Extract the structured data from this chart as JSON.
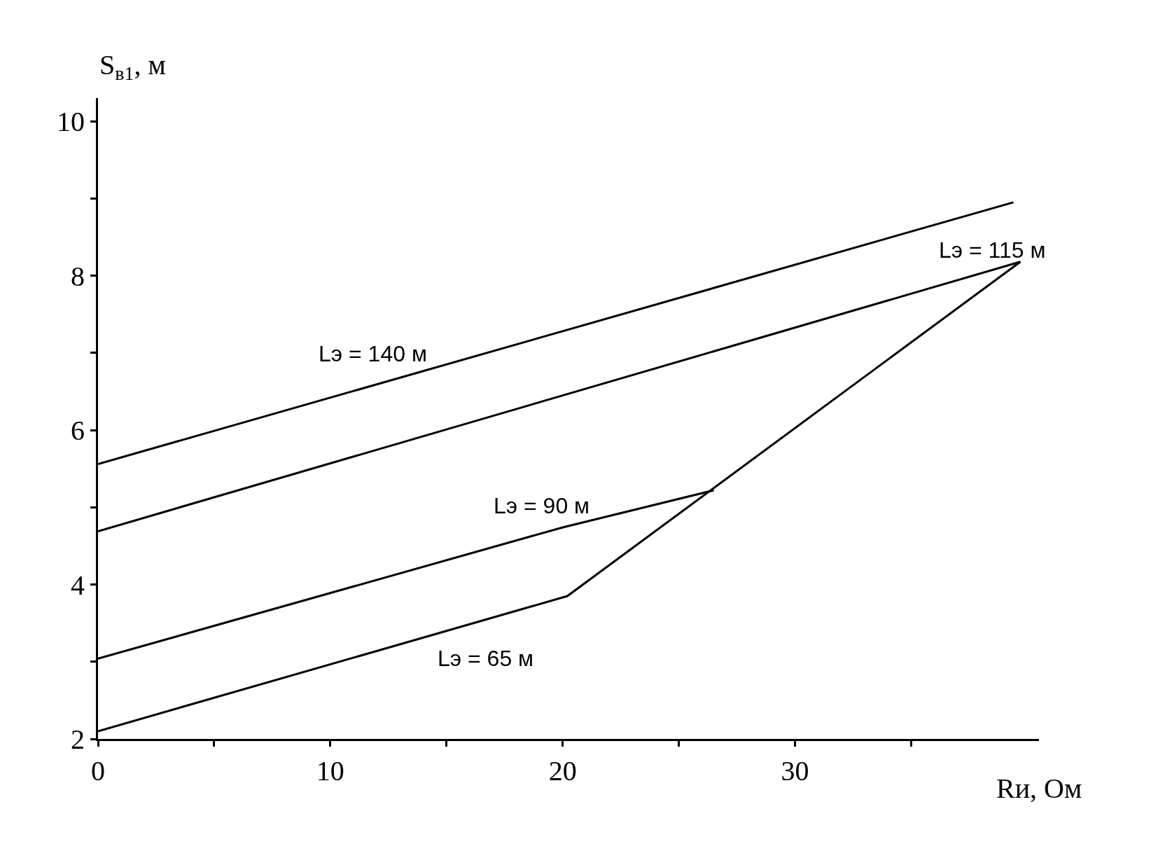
{
  "chart_data": {
    "type": "line",
    "xlabel": "Rи, Ом",
    "ylabel": "S$_{в1}$, м",
    "series": [
      {
        "name": "Lэ = 140 м",
        "color": "#000000",
        "x": [
          0,
          39.4
        ],
        "values": [
          5.56,
          8.95
        ]
      },
      {
        "name": "Lэ = 115 м",
        "color": "#000000",
        "x": [
          0,
          39.7
        ],
        "values": [
          4.69,
          8.18
        ]
      },
      {
        "name": "Lэ = 90 м",
        "color": "#000000",
        "x": [
          0,
          20,
          26.5
        ],
        "values": [
          3.04,
          4.74,
          5.22
        ]
      },
      {
        "name": "Lэ = 65 м",
        "color": "#000000",
        "x": [
          0,
          20.2,
          39.7
        ],
        "values": [
          2.1,
          3.85,
          8.18
        ]
      }
    ],
    "xlim": [
      0,
      40.5
    ],
    "ylim": [
      2,
      10.3
    ],
    "xticks": [
      0,
      {
        "value": 5,
        "label": null
      },
      10,
      {
        "value": 15,
        "label": null
      },
      20,
      {
        "value": 25,
        "label": null
      },
      30,
      {
        "value": 35,
        "label": null
      }
    ],
    "yticks": [
      2,
      {
        "value": 3,
        "label": null
      },
      4,
      {
        "value": 5,
        "label": null
      },
      6,
      {
        "value": 7,
        "label": null
      },
      8,
      {
        "value": 9,
        "label": null
      },
      10
    ],
    "grid": false,
    "legend": false,
    "marker": "none",
    "line_style": "solid"
  }
}
